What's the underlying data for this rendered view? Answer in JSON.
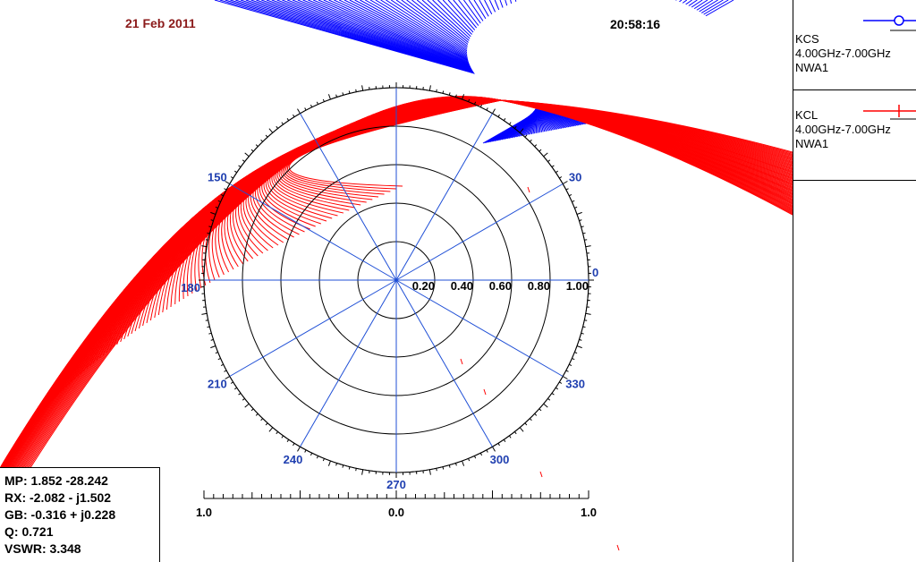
{
  "header": {
    "date": "21 Feb 2011",
    "time": "20:58:16"
  },
  "legend": [
    {
      "name": "KCS",
      "range": "4.00GHz-7.00GHz",
      "source": "NWA1",
      "color": "#0000ff",
      "marker": "circle"
    },
    {
      "name": "KCL",
      "range": "4.00GHz-7.00GHz",
      "source": "NWA1",
      "color": "#ff0000",
      "marker": "plus"
    }
  ],
  "marker_readout": {
    "mp": "MP: 1.852  -28.242",
    "rx": "RX: -2.082 - j1.502",
    "gb": "GB: -0.316 + j0.228",
    "q": "Q: 0.721",
    "vswr": "VSWR: 3.348"
  },
  "chart_data": {
    "type": "polar",
    "radial_ticks": [
      0.2,
      0.4,
      0.6,
      0.8,
      1.0
    ],
    "radial_tick_labels": [
      "0.20",
      "0.40",
      "0.60",
      "0.80",
      "1.00"
    ],
    "angle_ticks": [
      0,
      30,
      150,
      180,
      210,
      240,
      270,
      300,
      330
    ],
    "angle_tick_labels": [
      "0",
      "30",
      "150",
      "180",
      "210",
      "240",
      "270",
      "300",
      "330"
    ],
    "spoke_angles": [
      0,
      30,
      60,
      90,
      120,
      150,
      180,
      210,
      240,
      270,
      300,
      330
    ],
    "scale_labels": [
      "1.0",
      "0.0",
      "1.0"
    ],
    "series": [
      {
        "name": "KCS",
        "color": "#0000ff"
      },
      {
        "name": "KCL",
        "color": "#ff0000"
      }
    ],
    "colors": {
      "grid": "#000000",
      "spokes": "#1f4fd6",
      "tick_labels": "#1f3fb0"
    }
  }
}
